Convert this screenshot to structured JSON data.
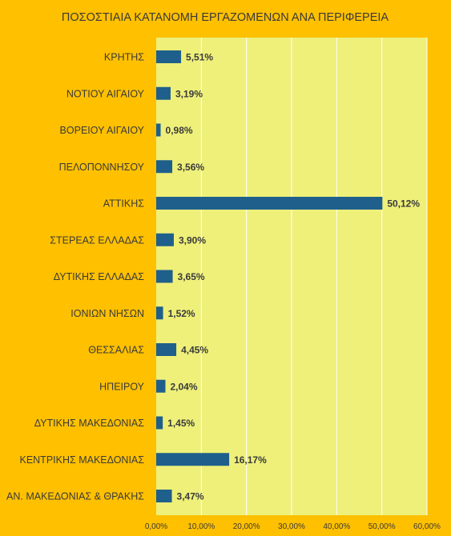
{
  "chart_data": {
    "type": "bar",
    "orientation": "horizontal",
    "title": "ΠΟΣΟΣΤΙΑΙΑ ΚΑΤΑΝΟΜΗ ΕΡΓΑΖΟΜΕΝΩΝ ΑΝΑ ΠΕΡΙΦΕΡΕΙΑ",
    "categories": [
      "ΚΡΗΤΗΣ",
      "ΝΟΤΙΟΥ ΑΙΓΑΙΟΥ",
      "ΒΟΡΕΙΟΥ ΑΙΓΑΙΟΥ",
      "ΠΕΛΟΠΟΝΝΗΣΟΥ",
      "ΑΤΤΙΚΗΣ",
      "ΣΤΕΡΕΑΣ ΕΛΛΑΔΑΣ",
      "ΔΥΤΙΚΗΣ ΕΛΛΑΔΑΣ",
      "ΙΟΝΙΩΝ ΝΗΣΩΝ",
      "ΘΕΣΣΑΛΙΑΣ",
      "ΗΠΕΙΡΟΥ",
      "ΔΥΤΙΚΗΣ ΜΑΚΕΔΟΝΙΑΣ",
      "ΚΕΝΤΡΙΚΗΣ ΜΑΚΕΔΟΝΙΑΣ",
      "ΑΝ. ΜΑΚΕΔΟΝΙΑΣ & ΘΡΑΚΗΣ"
    ],
    "values": [
      5.51,
      3.19,
      0.98,
      3.56,
      50.12,
      3.9,
      3.65,
      1.52,
      4.45,
      2.04,
      1.45,
      16.17,
      3.47
    ],
    "data_labels": [
      "5,51%",
      "3,19%",
      "0,98%",
      "3,56%",
      "50,12%",
      "3,90%",
      "3,65%",
      "1,52%",
      "4,45%",
      "2,04%",
      "1,45%",
      "16,17%",
      "3,47%"
    ],
    "xlim": [
      0,
      60
    ],
    "x_ticks": [
      0,
      10,
      20,
      30,
      40,
      50,
      60
    ],
    "x_tick_labels": [
      "0,00%",
      "10,00%",
      "20,00%",
      "30,00%",
      "40,00%",
      "50,00%",
      "60,00%"
    ],
    "grid": true,
    "legend": "none",
    "colors": {
      "page_background": "#FFC000",
      "plot_background": "#EEF07A",
      "bar": "#1F5F8B",
      "title_text": "#3A3A3A",
      "label_text": "#3A3A3A",
      "gridline": "#FFFFFF"
    }
  }
}
